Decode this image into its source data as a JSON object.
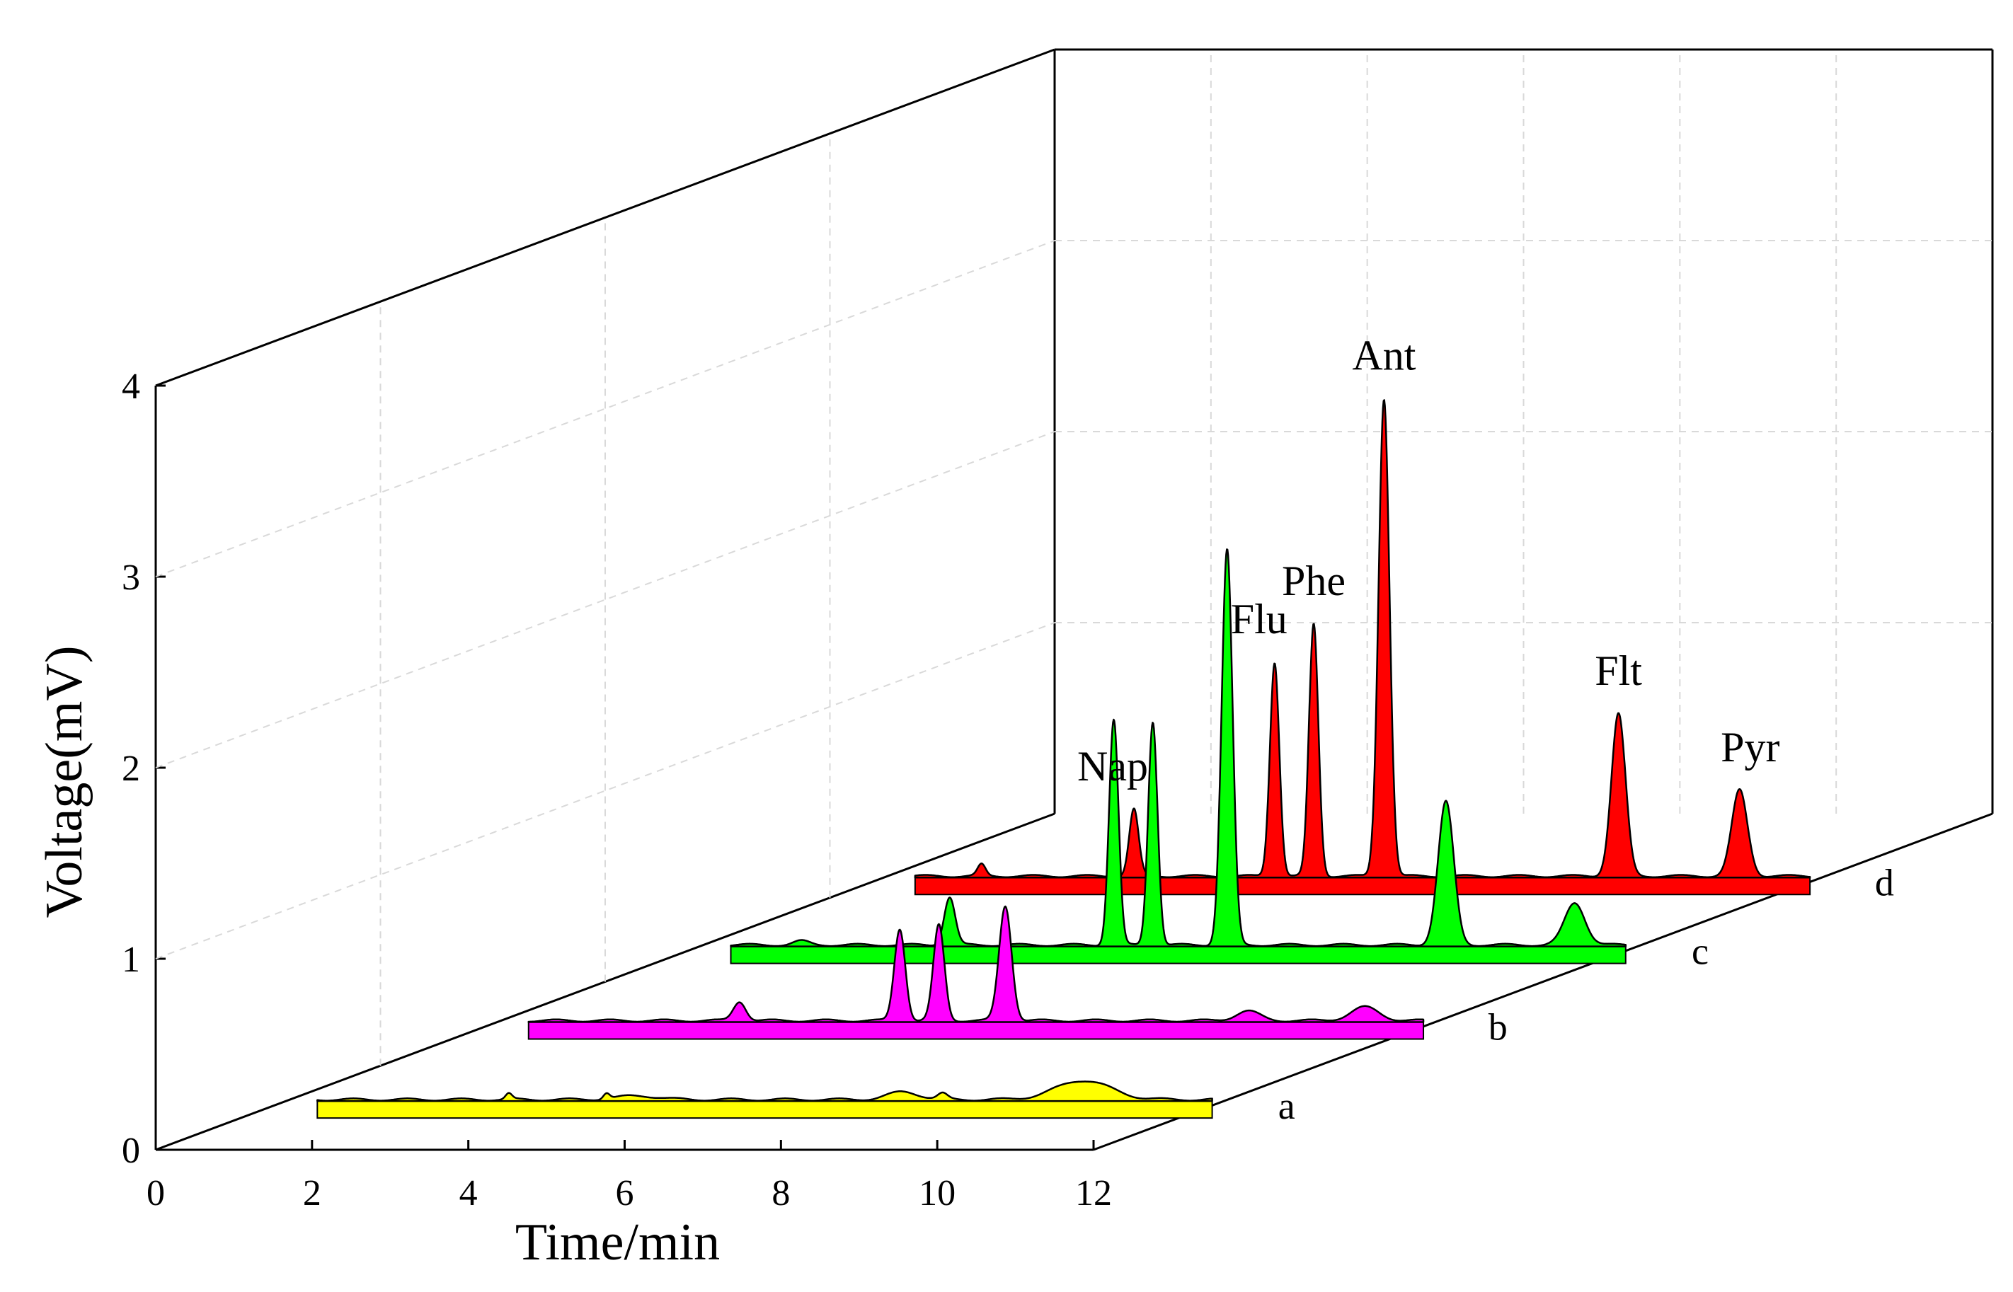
{
  "chart_data": {
    "type": "line",
    "subtype": "3d-waterfall-chromatogram",
    "title": "",
    "xlabel": "Time/min",
    "ylabel": "Voltage(mV)",
    "xlim": [
      0,
      12
    ],
    "ylim": [
      0,
      4
    ],
    "x_ticks": [
      "0",
      "2",
      "4",
      "6",
      "8",
      "10",
      "12"
    ],
    "y_ticks": [
      "0",
      "1",
      "2",
      "3",
      "4"
    ],
    "grid": true,
    "series": [
      {
        "name": "a",
        "color": "#ffff00",
        "peaks": [
          {
            "t": 2.85,
            "h": 0.03,
            "w": 0.04
          },
          {
            "t": 4.1,
            "h": 0.03,
            "w": 0.04
          },
          {
            "t": 4.5,
            "h": 0.02,
            "w": 0.25
          },
          {
            "t": 7.9,
            "h": 0.04,
            "w": 0.2
          },
          {
            "t": 8.4,
            "h": 0.03,
            "w": 0.06
          },
          {
            "t": 10.2,
            "h": 0.1,
            "w": 0.35
          }
        ]
      },
      {
        "name": "b",
        "color": "#ff00ff",
        "peaks": [
          {
            "t": 3.1,
            "h": 0.1,
            "w": 0.08
          },
          {
            "t": 5.15,
            "h": 0.48,
            "w": 0.07
          },
          {
            "t": 5.65,
            "h": 0.5,
            "w": 0.07
          },
          {
            "t": 6.5,
            "h": 0.6,
            "w": 0.08
          },
          {
            "t": 9.6,
            "h": 0.05,
            "w": 0.15
          },
          {
            "t": 11.1,
            "h": 0.07,
            "w": 0.18
          }
        ]
      },
      {
        "name": "c",
        "color": "#00ff00",
        "peaks": [
          {
            "t": 1.3,
            "h": 0.02,
            "w": 0.1
          },
          {
            "t": 3.2,
            "h": 0.25,
            "w": 0.07
          },
          {
            "t": 5.3,
            "h": 1.18,
            "w": 0.06
          },
          {
            "t": 5.8,
            "h": 1.17,
            "w": 0.06
          },
          {
            "t": 6.75,
            "h": 2.07,
            "w": 0.07
          },
          {
            "t": 9.55,
            "h": 0.75,
            "w": 0.1
          },
          {
            "t": 11.2,
            "h": 0.22,
            "w": 0.13
          }
        ]
      },
      {
        "name": "d",
        "color": "#ff0000",
        "peaks": [
          {
            "t": 1.25,
            "h": 0.06,
            "w": 0.05
          },
          {
            "t": 3.2,
            "h": 0.35,
            "w": 0.06
          },
          {
            "t": 5.0,
            "h": 1.12,
            "w": 0.06
          },
          {
            "t": 5.5,
            "h": 1.32,
            "w": 0.06
          },
          {
            "t": 6.4,
            "h": 2.5,
            "w": 0.07
          },
          {
            "t": 9.4,
            "h": 0.85,
            "w": 0.09
          },
          {
            "t": 10.95,
            "h": 0.45,
            "w": 0.1
          }
        ]
      }
    ],
    "peak_labels": [
      {
        "text": "Nap",
        "series": "d",
        "t": 3.2
      },
      {
        "text": "Flu",
        "series": "d",
        "t": 5.0
      },
      {
        "text": "Phe",
        "series": "d",
        "t": 5.5
      },
      {
        "text": "Ant",
        "series": "d",
        "t": 6.4
      },
      {
        "text": "Flt",
        "series": "d",
        "t": 9.4
      },
      {
        "text": "Pyr",
        "series": "d",
        "t": 10.95
      }
    ]
  }
}
